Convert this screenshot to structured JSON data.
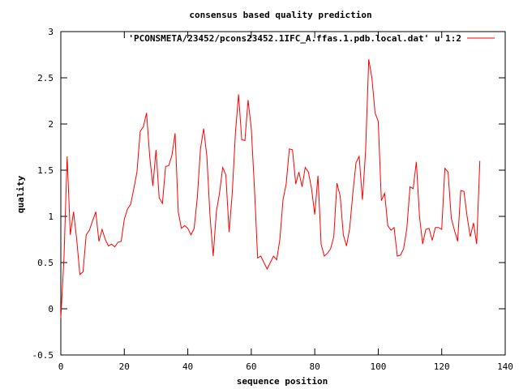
{
  "chart_data": {
    "type": "line",
    "title": "consensus based quality prediction",
    "xlabel": "sequence position",
    "ylabel": "quality",
    "xlim": [
      0,
      140
    ],
    "ylim": [
      -0.5,
      3
    ],
    "xticks": [
      "0",
      "20",
      "40",
      "60",
      "80",
      "100",
      "120",
      "140"
    ],
    "yticks": [
      "-0.5",
      "0",
      "0.5",
      "1",
      "1.5",
      "2",
      "2.5",
      "3"
    ],
    "grid": false,
    "legend_position": "top-right",
    "series": [
      {
        "name": "'PCONSMETA/23452/pcons23452.1IFC_A.ffas.1.pdb.local.dat' u 1:2",
        "color": "#ff0000",
        "x": [
          0,
          1,
          2,
          3,
          4,
          5,
          6,
          7,
          8,
          9,
          10,
          11,
          12,
          13,
          14,
          15,
          16,
          17,
          18,
          19,
          20,
          21,
          22,
          23,
          24,
          25,
          26,
          27,
          28,
          29,
          30,
          31,
          32,
          33,
          34,
          35,
          36,
          37,
          38,
          39,
          40,
          41,
          42,
          43,
          44,
          45,
          46,
          47,
          48,
          49,
          50,
          51,
          52,
          53,
          54,
          55,
          56,
          57,
          58,
          59,
          60,
          61,
          62,
          63,
          64,
          65,
          66,
          67,
          68,
          69,
          70,
          71,
          72,
          73,
          74,
          75,
          76,
          77,
          78,
          79,
          80,
          81,
          82,
          83,
          84,
          85,
          86,
          87,
          88,
          89,
          90,
          91,
          92,
          93,
          94,
          95,
          96,
          97,
          98,
          99,
          100,
          101,
          102,
          103,
          104,
          105,
          106,
          107,
          108,
          109,
          110,
          111,
          112,
          113,
          114,
          115,
          116,
          117,
          118,
          119,
          120,
          121,
          122,
          123,
          124,
          125,
          126,
          127,
          128,
          129,
          130,
          131,
          132
        ],
        "y": [
          -0.1,
          0.55,
          1.65,
          0.8,
          1.05,
          0.75,
          0.37,
          0.4,
          0.8,
          0.85,
          0.95,
          1.05,
          0.73,
          0.86,
          0.75,
          0.68,
          0.7,
          0.67,
          0.72,
          0.73,
          0.97,
          1.08,
          1.13,
          1.3,
          1.48,
          1.92,
          1.97,
          2.12,
          1.65,
          1.33,
          1.72,
          1.2,
          1.14,
          1.54,
          1.55,
          1.66,
          1.9,
          1.05,
          0.87,
          0.9,
          0.87,
          0.8,
          0.87,
          1.2,
          1.73,
          1.95,
          1.65,
          1.0,
          0.57,
          1.05,
          1.25,
          1.53,
          1.45,
          0.83,
          1.25,
          1.9,
          2.32,
          1.83,
          1.82,
          2.26,
          1.95,
          1.3,
          0.55,
          0.57,
          0.5,
          0.43,
          0.5,
          0.57,
          0.53,
          0.75,
          1.18,
          1.35,
          1.73,
          1.72,
          1.35,
          1.48,
          1.32,
          1.53,
          1.48,
          1.3,
          1.02,
          1.44,
          0.7,
          0.57,
          0.6,
          0.65,
          0.78,
          1.36,
          1.22,
          0.8,
          0.68,
          0.87,
          1.25,
          1.58,
          1.65,
          1.18,
          1.7,
          2.7,
          2.5,
          2.12,
          2.03,
          1.17,
          1.25,
          0.9,
          0.85,
          0.88,
          0.57,
          0.58,
          0.65,
          0.87,
          1.32,
          1.3,
          1.59,
          1.0,
          0.7,
          0.86,
          0.87,
          0.74,
          0.88,
          0.88,
          0.86,
          1.52,
          1.48,
          0.98,
          0.85,
          0.73,
          1.28,
          1.27,
          1.0,
          0.78,
          0.93,
          0.7,
          1.6
        ]
      }
    ]
  }
}
